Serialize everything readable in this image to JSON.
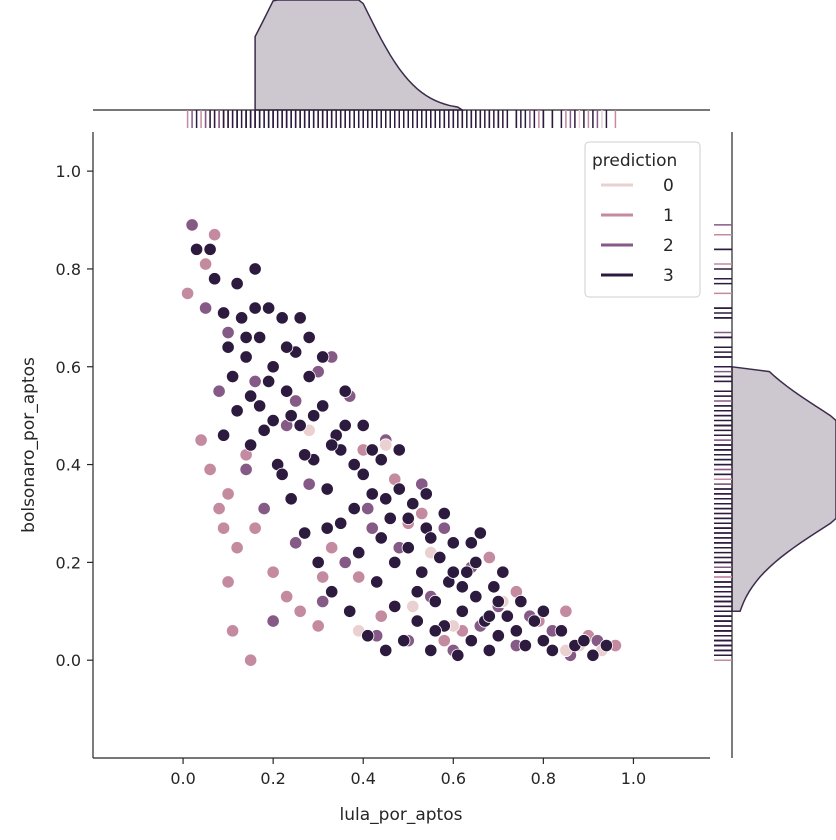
{
  "chart_data": {
    "type": "scatter",
    "xlabel": "lula_por_aptos",
    "ylabel": "bolsonaro_por_aptos",
    "xlim": [
      -0.2,
      1.17
    ],
    "ylim": [
      -0.2,
      1.08
    ],
    "x_ticks": [
      "0.0",
      "0.2",
      "0.4",
      "0.6",
      "0.8",
      "1.0"
    ],
    "y_ticks": [
      "0.0",
      "0.2",
      "0.4",
      "0.6",
      "0.8",
      "1.0"
    ],
    "legend": {
      "title": "prediction",
      "placement": "top-right",
      "entries": [
        {
          "label": "0",
          "color": "#ead0d0"
        },
        {
          "label": "1",
          "color": "#c48a9f"
        },
        {
          "label": "2",
          "color": "#865a86"
        },
        {
          "label": "3",
          "color": "#2d1b3f"
        }
      ]
    },
    "series": [
      {
        "name": "0",
        "points": [
          [
            0.28,
            0.47
          ],
          [
            0.39,
            0.06
          ],
          [
            0.45,
            0.44
          ],
          [
            0.55,
            0.22
          ],
          [
            0.6,
            0.07
          ],
          [
            0.71,
            0.12
          ],
          [
            0.85,
            0.02
          ],
          [
            0.88,
            0.03
          ],
          [
            0.93,
            0.02
          ],
          [
            0.51,
            0.11
          ]
        ]
      },
      {
        "name": "1",
        "points": [
          [
            0.01,
            0.75
          ],
          [
            0.05,
            0.81
          ],
          [
            0.07,
            0.87
          ],
          [
            0.06,
            0.39
          ],
          [
            0.08,
            0.31
          ],
          [
            0.1,
            0.34
          ],
          [
            0.12,
            0.23
          ],
          [
            0.1,
            0.16
          ],
          [
            0.11,
            0.06
          ],
          [
            0.14,
            0.42
          ],
          [
            0.16,
            0.27
          ],
          [
            0.15,
            0.0
          ],
          [
            0.2,
            0.18
          ],
          [
            0.23,
            0.13
          ],
          [
            0.26,
            0.1
          ],
          [
            0.3,
            0.07
          ],
          [
            0.31,
            0.17
          ],
          [
            0.33,
            0.23
          ],
          [
            0.39,
            0.17
          ],
          [
            0.4,
            0.43
          ],
          [
            0.44,
            0.09
          ],
          [
            0.47,
            0.37
          ],
          [
            0.5,
            0.28
          ],
          [
            0.53,
            0.3
          ],
          [
            0.58,
            0.04
          ],
          [
            0.62,
            0.06
          ],
          [
            0.68,
            0.21
          ],
          [
            0.74,
            0.14
          ],
          [
            0.79,
            0.08
          ],
          [
            0.85,
            0.1
          ],
          [
            0.9,
            0.05
          ],
          [
            0.96,
            0.03
          ],
          [
            0.04,
            0.45
          ],
          [
            0.09,
            0.27
          ]
        ]
      },
      {
        "name": "2",
        "points": [
          [
            0.02,
            0.89
          ],
          [
            0.05,
            0.72
          ],
          [
            0.08,
            0.55
          ],
          [
            0.1,
            0.67
          ],
          [
            0.14,
            0.39
          ],
          [
            0.16,
            0.57
          ],
          [
            0.18,
            0.31
          ],
          [
            0.2,
            0.08
          ],
          [
            0.23,
            0.48
          ],
          [
            0.25,
            0.24
          ],
          [
            0.28,
            0.36
          ],
          [
            0.31,
            0.12
          ],
          [
            0.33,
            0.62
          ],
          [
            0.37,
            0.54
          ],
          [
            0.36,
            0.2
          ],
          [
            0.41,
            0.31
          ],
          [
            0.43,
            0.05
          ],
          [
            0.45,
            0.45
          ],
          [
            0.48,
            0.23
          ],
          [
            0.5,
            0.04
          ],
          [
            0.53,
            0.36
          ],
          [
            0.55,
            0.13
          ],
          [
            0.58,
            0.27
          ],
          [
            0.6,
            0.02
          ],
          [
            0.64,
            0.19
          ],
          [
            0.66,
            0.07
          ],
          [
            0.7,
            0.11
          ],
          [
            0.74,
            0.03
          ],
          [
            0.77,
            0.09
          ],
          [
            0.82,
            0.06
          ],
          [
            0.86,
            0.01
          ],
          [
            0.92,
            0.04
          ],
          [
            0.25,
            0.53
          ],
          [
            0.3,
            0.59
          ],
          [
            0.42,
            0.27
          ]
        ]
      },
      {
        "name": "3",
        "points": [
          [
            0.03,
            0.84
          ],
          [
            0.06,
            0.84
          ],
          [
            0.07,
            0.78
          ],
          [
            0.09,
            0.71
          ],
          [
            0.1,
            0.64
          ],
          [
            0.09,
            0.46
          ],
          [
            0.11,
            0.58
          ],
          [
            0.12,
            0.77
          ],
          [
            0.13,
            0.7
          ],
          [
            0.14,
            0.62
          ],
          [
            0.15,
            0.54
          ],
          [
            0.16,
            0.8
          ],
          [
            0.17,
            0.66
          ],
          [
            0.18,
            0.47
          ],
          [
            0.19,
            0.72
          ],
          [
            0.2,
            0.6
          ],
          [
            0.21,
            0.4
          ],
          [
            0.22,
            0.7
          ],
          [
            0.23,
            0.55
          ],
          [
            0.24,
            0.33
          ],
          [
            0.25,
            0.63
          ],
          [
            0.26,
            0.48
          ],
          [
            0.27,
            0.26
          ],
          [
            0.28,
            0.58
          ],
          [
            0.29,
            0.41
          ],
          [
            0.3,
            0.2
          ],
          [
            0.31,
            0.52
          ],
          [
            0.32,
            0.35
          ],
          [
            0.33,
            0.14
          ],
          [
            0.34,
            0.46
          ],
          [
            0.35,
            0.28
          ],
          [
            0.36,
            0.55
          ],
          [
            0.37,
            0.1
          ],
          [
            0.38,
            0.4
          ],
          [
            0.39,
            0.22
          ],
          [
            0.4,
            0.48
          ],
          [
            0.41,
            0.05
          ],
          [
            0.42,
            0.34
          ],
          [
            0.43,
            0.16
          ],
          [
            0.44,
            0.41
          ],
          [
            0.45,
            0.02
          ],
          [
            0.46,
            0.29
          ],
          [
            0.47,
            0.11
          ],
          [
            0.48,
            0.35
          ],
          [
            0.49,
            0.04
          ],
          [
            0.5,
            0.23
          ],
          [
            0.51,
            0.32
          ],
          [
            0.52,
            0.08
          ],
          [
            0.53,
            0.18
          ],
          [
            0.54,
            0.27
          ],
          [
            0.55,
            0.02
          ],
          [
            0.56,
            0.12
          ],
          [
            0.57,
            0.21
          ],
          [
            0.58,
            0.07
          ],
          [
            0.59,
            0.16
          ],
          [
            0.6,
            0.24
          ],
          [
            0.61,
            0.01
          ],
          [
            0.62,
            0.1
          ],
          [
            0.63,
            0.18
          ],
          [
            0.64,
            0.04
          ],
          [
            0.65,
            0.13
          ],
          [
            0.66,
            0.26
          ],
          [
            0.67,
            0.08
          ],
          [
            0.68,
            0.02
          ],
          [
            0.69,
            0.15
          ],
          [
            0.7,
            0.05
          ],
          [
            0.72,
            0.09
          ],
          [
            0.74,
            0.06
          ],
          [
            0.76,
            0.03
          ],
          [
            0.78,
            0.08
          ],
          [
            0.8,
            0.04
          ],
          [
            0.82,
            0.02
          ],
          [
            0.84,
            0.06
          ],
          [
            0.87,
            0.03
          ],
          [
            0.89,
            0.04
          ],
          [
            0.91,
            0.01
          ],
          [
            0.94,
            0.03
          ],
          [
            0.15,
            0.44
          ],
          [
            0.17,
            0.52
          ],
          [
            0.22,
            0.38
          ],
          [
            0.27,
            0.42
          ],
          [
            0.32,
            0.27
          ],
          [
            0.35,
            0.43
          ],
          [
            0.38,
            0.31
          ],
          [
            0.44,
            0.25
          ],
          [
            0.47,
            0.2
          ],
          [
            0.52,
            0.14
          ],
          [
            0.56,
            0.06
          ],
          [
            0.62,
            0.15
          ],
          [
            0.68,
            0.09
          ],
          [
            0.12,
            0.51
          ],
          [
            0.19,
            0.57
          ],
          [
            0.24,
            0.5
          ],
          [
            0.29,
            0.5
          ],
          [
            0.33,
            0.44
          ],
          [
            0.4,
            0.38
          ],
          [
            0.45,
            0.33
          ],
          [
            0.5,
            0.29
          ],
          [
            0.55,
            0.25
          ],
          [
            0.6,
            0.18
          ],
          [
            0.65,
            0.2
          ],
          [
            0.7,
            0.12
          ],
          [
            0.26,
            0.7
          ],
          [
            0.2,
            0.49
          ],
          [
            0.23,
            0.64
          ],
          [
            0.31,
            0.62
          ],
          [
            0.36,
            0.48
          ],
          [
            0.42,
            0.43
          ],
          [
            0.48,
            0.43
          ],
          [
            0.54,
            0.34
          ],
          [
            0.58,
            0.3
          ],
          [
            0.64,
            0.24
          ],
          [
            0.71,
            0.18
          ],
          [
            0.75,
            0.12
          ],
          [
            0.8,
            0.1
          ],
          [
            0.16,
            0.72
          ],
          [
            0.14,
            0.66
          ],
          [
            0.28,
            0.66
          ]
        ]
      }
    ],
    "marginal": {
      "x_kde_peak": 0.3,
      "y_kde_peak": 0.39
    }
  }
}
